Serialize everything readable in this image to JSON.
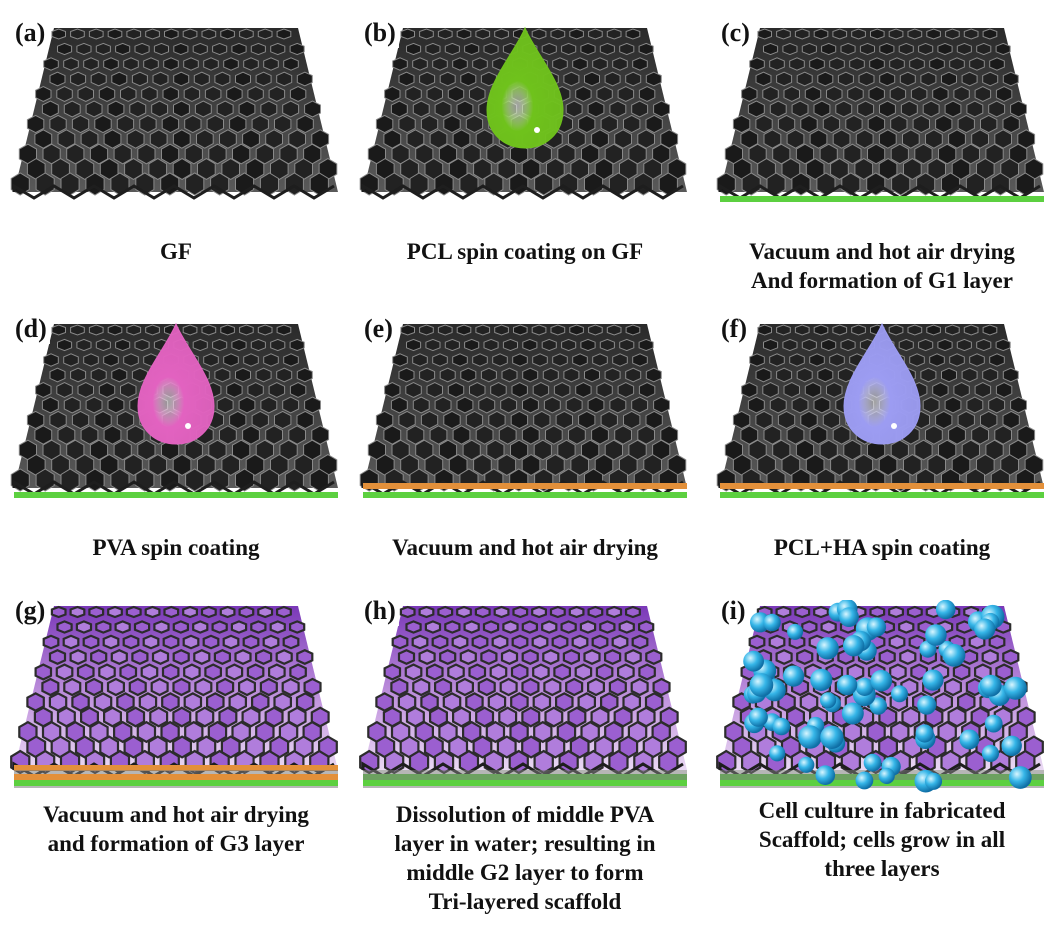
{
  "panels": [
    {
      "letter": "(a)",
      "caption": [
        "GF"
      ],
      "drop": null,
      "bottom_layers": [],
      "state": "plain",
      "caption_y": 215
    },
    {
      "letter": "(b)",
      "caption": [
        "PCL spin coating on GF"
      ],
      "drop": "#6fc21c",
      "bottom_layers": [],
      "state": "plain",
      "caption_y": 215
    },
    {
      "letter": "(c)",
      "caption": [
        "Vacuum and hot air drying",
        "And formation of G1 layer"
      ],
      "drop": null,
      "bottom_layers": [
        "#5cd040"
      ],
      "state": "plain",
      "caption_y": 215
    },
    {
      "letter": "(d)",
      "caption": [
        "PVA spin coating"
      ],
      "drop": "#e262c0",
      "bottom_layers": [
        "#5cd040"
      ],
      "state": "plain",
      "caption_y": 215
    },
    {
      "letter": "(e)",
      "caption": [
        "Vacuum and hot air drying"
      ],
      "drop": null,
      "bottom_layers": [
        "#5cd040",
        "#e3903a"
      ],
      "state": "plain",
      "caption_y": 215
    },
    {
      "letter": "(f)",
      "caption": [
        "PCL+HA spin coating"
      ],
      "drop": "#9c9cf2",
      "bottom_layers": [
        "#5cd040",
        "#e3903a"
      ],
      "state": "plain",
      "caption_y": 215
    },
    {
      "letter": "(g)",
      "caption": [
        "Vacuum and hot air drying",
        "and formation of G3 layer"
      ],
      "drop": null,
      "bottom_layers": [
        "#5cd040",
        "#e3903a"
      ],
      "state": "coated",
      "caption_y": 200
    },
    {
      "letter": "(h)",
      "caption": [
        "Dissolution of middle PVA",
        "layer in water; resulting in",
        "middle G2 layer to form",
        "Tri-layered scaffold"
      ],
      "drop": null,
      "bottom_layers": [
        "#5cd040"
      ],
      "state": "coated",
      "caption_y": 200
    },
    {
      "letter": "(i)",
      "caption": [
        "Cell culture in fabricated",
        "Scaffold; cells grow in all",
        "three layers"
      ],
      "drop": null,
      "bottom_layers": [
        "#5cd040"
      ],
      "state": "cells",
      "caption_y": 196
    }
  ]
}
